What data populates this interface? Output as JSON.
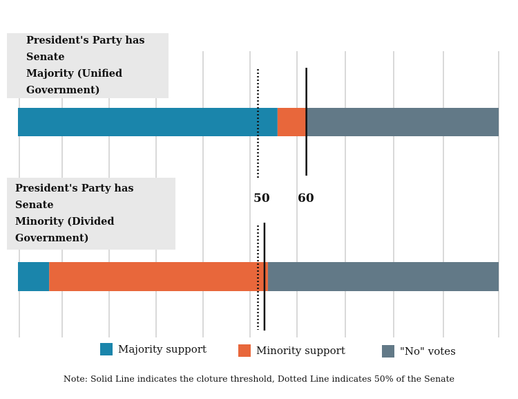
{
  "chart_data": {
    "type": "bar",
    "orientation": "horizontal",
    "stacked": true,
    "scale_max": 100,
    "categories": [
      "President's Party has Senate Majority (Unified Government)",
      "President's Party has Senate Minority (Divided Government)"
    ],
    "category_lines": [
      [
        "President's Party has Senate",
        "Majority (Unified Government)"
      ],
      [
        "President's Party has Senate",
        "Minority (Divided Government)"
      ]
    ],
    "series": [
      {
        "name": "Majority support",
        "color": "#1a85ab",
        "values": [
          54,
          6.5
        ]
      },
      {
        "name": "Minority support",
        "color": "#e8673b",
        "values": [
          6,
          45.5
        ]
      },
      {
        "name": "\"No\" votes",
        "color": "#627987",
        "values": [
          40,
          48
        ]
      }
    ],
    "reference_lines": [
      {
        "label": "50",
        "value": 50,
        "style": "dotted"
      },
      {
        "label": "60",
        "value": 60,
        "style": "solid"
      }
    ],
    "divided_threshold_value": 52,
    "grid": true,
    "legend_position": "bottom",
    "note": "Note: Solid Line indicates the cloture threshold, Dotted Line indicates 50% of the Senate"
  }
}
